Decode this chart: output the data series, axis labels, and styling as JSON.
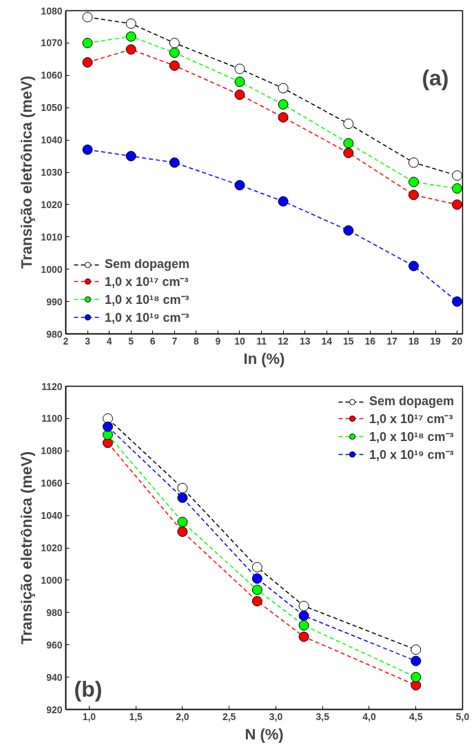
{
  "chart_data": [
    {
      "type": "line",
      "xlabel": "In (%)",
      "ylabel": "Transição eletrônica (meV)",
      "annotations": [
        "(a)"
      ],
      "x": [
        3,
        5,
        7,
        10,
        12,
        15,
        18,
        20
      ],
      "series": [
        {
          "name": "Sem dopagem",
          "color": "#000000",
          "values": [
            1078,
            1076,
            1070,
            1062,
            1056,
            1045,
            1033,
            1029
          ]
        },
        {
          "name": "1,0 x 10¹⁷ cm⁻³",
          "color": "#ff0000",
          "values": [
            1064,
            1068,
            1063,
            1054,
            1047,
            1036,
            1023,
            1020
          ]
        },
        {
          "name": "1,0 x 10¹⁸ cm⁻³",
          "color": "#00ff00",
          "values": [
            1070,
            1072,
            1067,
            1058,
            1051,
            1039,
            1027,
            1025
          ]
        },
        {
          "name": "1,0 x 10¹⁹ cm⁻³",
          "color": "#0000ff",
          "values": [
            1037,
            1035,
            1033,
            1026,
            1021,
            1012,
            1001,
            990
          ]
        }
      ],
      "xlim": [
        2,
        20.25
      ],
      "xticks": [
        2,
        3,
        4,
        5,
        6,
        7,
        8,
        9,
        10,
        11,
        12,
        13,
        14,
        15,
        16,
        17,
        18,
        19,
        20
      ],
      "ylim": [
        980,
        1080
      ],
      "yticks": [
        980,
        990,
        1000,
        1010,
        1020,
        1030,
        1040,
        1050,
        1060,
        1070,
        1080
      ],
      "grid": false,
      "legend": "bottom left",
      "marker": "circle",
      "line_style": "dashed"
    },
    {
      "type": "line",
      "xlabel": "N (%)",
      "ylabel": "Transição eletrônica (meV)",
      "annotations": [
        "(b)"
      ],
      "x": [
        1.2,
        2.0,
        2.8,
        3.3,
        4.5
      ],
      "series": [
        {
          "name": "Sem dopagem",
          "color": "#000000",
          "values": [
            1100,
            1057,
            1008,
            984,
            957
          ]
        },
        {
          "name": "1,0 x 10¹⁷ cm⁻³",
          "color": "#ff0000",
          "values": [
            1085,
            1030,
            987,
            965,
            935
          ]
        },
        {
          "name": "1,0 x 10¹⁸ cm⁻³",
          "color": "#00ff00",
          "values": [
            1090,
            1036,
            994,
            972,
            940
          ]
        },
        {
          "name": "1,0 x 10¹⁹ cm⁻³",
          "color": "#0000ff",
          "values": [
            1095,
            1051,
            1001,
            978,
            950
          ]
        }
      ],
      "xlim": [
        0.75,
        5.0
      ],
      "xticks": [
        {
          "value": 1.0,
          "label": "1,0"
        },
        {
          "value": 1.5,
          "label": "1,5"
        },
        {
          "value": 2.0,
          "label": "2,0"
        },
        {
          "value": 2.5,
          "label": "2,5"
        },
        {
          "value": 3.0,
          "label": "3,0"
        },
        {
          "value": 3.5,
          "label": "3,5"
        },
        {
          "value": 4.0,
          "label": "4,0"
        },
        {
          "value": 4.5,
          "label": "4,5"
        },
        {
          "value": 5.0,
          "label": "5,0"
        }
      ],
      "ylim": [
        920,
        1120
      ],
      "yticks": [
        920,
        940,
        960,
        980,
        1000,
        1020,
        1040,
        1060,
        1080,
        1100,
        1120
      ],
      "grid": false,
      "legend": "top right",
      "marker": "circle",
      "line_style": "dashed"
    }
  ]
}
